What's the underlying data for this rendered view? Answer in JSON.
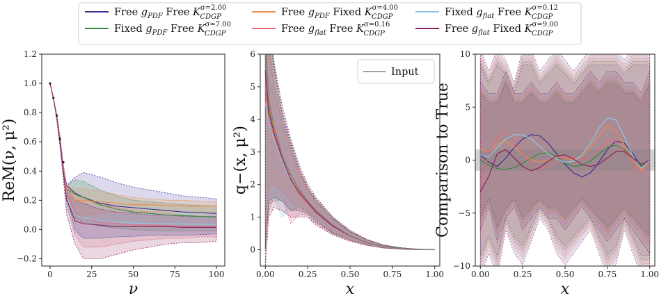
{
  "legend": [
    {
      "prefix": "Free ",
      "gsub": "PDF",
      "mid": " Free ",
      "sup": "σ=2.00",
      "color": "#3a2f8f"
    },
    {
      "prefix": "Fixed ",
      "gsub": "PDF",
      "mid": " Free ",
      "sup": "σ=7.00",
      "color": "#2e8b3a"
    },
    {
      "prefix": "Free ",
      "gsub": "PDF",
      "mid": " Fixed ",
      "sup": "σ=4.00",
      "color": "#f08a4b"
    },
    {
      "prefix": "Free ",
      "gsub": "flat",
      "mid": " Free ",
      "sup": "σ=0.16",
      "color": "#e36b7a"
    },
    {
      "prefix": "Fixed ",
      "gsub": "flat",
      "mid": " Free ",
      "sup": "σ=0.12",
      "color": "#8cc8e6"
    },
    {
      "prefix": "Free ",
      "gsub": "flat",
      "mid": " Fixed ",
      "sup": "σ=9.00",
      "color": "#8b1f5e"
    }
  ],
  "legend_k_sub": "CDGP",
  "input_legend": "Input",
  "input_color": "#808080",
  "chart_data": [
    {
      "type": "line",
      "xlabel": "ν",
      "ylabel": "ReM(ν, μ²)",
      "xlim": [
        -5,
        105
      ],
      "ylim": [
        -0.25,
        1.2
      ],
      "xticks": [
        0,
        25,
        50,
        75,
        100
      ],
      "yticks": [
        -0.2,
        0.0,
        0.2,
        0.4,
        0.6,
        0.8,
        1.0,
        1.2
      ],
      "yticklabels": [
        "−0.2",
        "0.0",
        "0.2",
        "0.4",
        "0.6",
        "0.8",
        "1.0",
        "1.2"
      ],
      "xticklabels": [
        "0",
        "25",
        "50",
        "75",
        "100"
      ],
      "x": [
        0,
        2,
        4,
        6,
        8,
        10,
        15,
        20,
        30,
        40,
        50,
        60,
        70,
        80,
        90,
        100
      ],
      "input_points": {
        "x": [
          0,
          2,
          4,
          6,
          8
        ],
        "y": [
          1.0,
          0.9,
          0.78,
          0.62,
          0.46
        ]
      },
      "series": [
        {
          "mean": [
            1.0,
            0.9,
            0.77,
            0.6,
            0.42,
            0.3,
            0.25,
            0.22,
            0.18,
            0.16,
            0.15,
            0.14,
            0.13,
            0.12,
            0.115,
            0.11
          ],
          "lo": [
            1.0,
            0.9,
            0.76,
            0.58,
            0.38,
            0.22,
            0.0,
            -0.06,
            -0.06,
            -0.05,
            -0.045,
            -0.04,
            -0.04,
            -0.04,
            -0.035,
            -0.03
          ],
          "hi": [
            1.0,
            0.9,
            0.78,
            0.62,
            0.44,
            0.3,
            0.36,
            0.39,
            0.36,
            0.32,
            0.29,
            0.27,
            0.25,
            0.23,
            0.22,
            0.21
          ]
        },
        {
          "mean": [
            1.0,
            0.9,
            0.77,
            0.6,
            0.42,
            0.28,
            0.24,
            0.22,
            0.17,
            0.14,
            0.12,
            0.11,
            0.1,
            0.095,
            0.09,
            0.085
          ],
          "lo": [
            1.0,
            0.9,
            0.76,
            0.58,
            0.38,
            0.2,
            0.08,
            0.05,
            0.02,
            0.01,
            0.0,
            -0.005,
            -0.01,
            -0.01,
            -0.01,
            -0.01
          ],
          "hi": [
            1.0,
            0.9,
            0.78,
            0.62,
            0.44,
            0.3,
            0.34,
            0.33,
            0.27,
            0.23,
            0.2,
            0.19,
            0.18,
            0.17,
            0.165,
            0.16
          ]
        },
        {
          "mean": [
            1.0,
            0.9,
            0.77,
            0.6,
            0.42,
            0.28,
            0.2,
            0.2,
            0.19,
            0.18,
            0.17,
            0.17,
            0.165,
            0.16,
            0.16,
            0.16
          ],
          "lo": [
            1.0,
            0.9,
            0.76,
            0.58,
            0.38,
            0.22,
            0.1,
            0.1,
            0.11,
            0.12,
            0.12,
            0.12,
            0.12,
            0.12,
            0.12,
            0.12
          ],
          "hi": [
            1.0,
            0.9,
            0.78,
            0.62,
            0.44,
            0.3,
            0.28,
            0.28,
            0.26,
            0.24,
            0.22,
            0.21,
            0.2,
            0.2,
            0.195,
            0.19
          ]
        },
        {
          "mean": [
            1.0,
            0.9,
            0.77,
            0.6,
            0.42,
            0.25,
            0.12,
            0.08,
            0.05,
            0.04,
            0.03,
            0.03,
            0.025,
            0.02,
            0.02,
            0.02
          ],
          "lo": [
            1.0,
            0.9,
            0.76,
            0.58,
            0.36,
            0.18,
            -0.04,
            -0.12,
            -0.12,
            -0.1,
            -0.08,
            -0.07,
            -0.06,
            -0.06,
            -0.05,
            -0.05
          ],
          "hi": [
            1.0,
            0.9,
            0.78,
            0.62,
            0.44,
            0.3,
            0.25,
            0.22,
            0.18,
            0.15,
            0.13,
            0.12,
            0.11,
            0.1,
            0.1,
            0.1
          ]
        },
        {
          "mean": [
            1.0,
            0.9,
            0.77,
            0.6,
            0.42,
            0.22,
            0.1,
            0.08,
            0.06,
            0.05,
            0.045,
            0.04,
            0.04,
            0.04,
            0.035,
            0.035
          ],
          "lo": [
            1.0,
            0.9,
            0.76,
            0.58,
            0.38,
            0.15,
            -0.02,
            -0.06,
            -0.06,
            -0.05,
            -0.05,
            -0.04,
            -0.04,
            -0.04,
            -0.03,
            -0.03
          ],
          "hi": [
            1.0,
            0.9,
            0.78,
            0.62,
            0.44,
            0.28,
            0.2,
            0.18,
            0.15,
            0.13,
            0.12,
            0.11,
            0.1,
            0.1,
            0.09,
            0.09
          ]
        },
        {
          "mean": [
            1.0,
            0.9,
            0.77,
            0.6,
            0.4,
            0.2,
            0.06,
            0.04,
            0.03,
            0.02,
            0.02,
            0.02,
            0.02,
            0.015,
            0.015,
            0.015
          ],
          "lo": [
            1.0,
            0.9,
            0.75,
            0.56,
            0.34,
            0.1,
            -0.1,
            -0.2,
            -0.2,
            -0.17,
            -0.14,
            -0.12,
            -0.1,
            -0.09,
            -0.09,
            -0.08
          ],
          "hi": [
            1.0,
            0.9,
            0.79,
            0.64,
            0.44,
            0.28,
            0.2,
            0.18,
            0.14,
            0.12,
            0.11,
            0.1,
            0.1,
            0.09,
            0.09,
            0.09
          ]
        }
      ]
    },
    {
      "type": "line",
      "xlabel": "x",
      "ylabel": "q−(x, μ²)",
      "xlim": [
        -0.03,
        1.03
      ],
      "ylim": [
        -0.5,
        6.0
      ],
      "xticks": [
        0.0,
        0.25,
        0.5,
        0.75,
        1.0
      ],
      "xticklabels": [
        "0.00",
        "0.25",
        "0.50",
        "0.75",
        "1.00"
      ],
      "yticks": [
        0,
        1,
        2,
        3,
        4,
        5,
        6
      ],
      "yticklabels": [
        "0",
        "1",
        "2",
        "3",
        "4",
        "5",
        "6"
      ],
      "x": [
        0.0,
        0.02,
        0.05,
        0.1,
        0.15,
        0.2,
        0.25,
        0.3,
        0.4,
        0.5,
        0.6,
        0.7,
        0.8,
        0.9,
        1.0
      ],
      "input": [
        6.5,
        4.6,
        3.8,
        2.9,
        2.3,
        1.85,
        1.5,
        1.2,
        0.75,
        0.43,
        0.22,
        0.1,
        0.04,
        0.01,
        0.0
      ],
      "series": [
        {
          "mean": [
            6.4,
            4.5,
            3.7,
            2.8,
            2.2,
            1.8,
            1.45,
            1.15,
            0.72,
            0.42,
            0.22,
            0.1,
            0.04,
            0.01,
            0.0
          ],
          "lo": [
            0.0,
            1.5,
            1.6,
            1.5,
            1.2,
            1.2,
            1.1,
            0.85,
            0.5,
            0.3,
            0.15,
            0.06,
            0.02,
            0.0,
            0.0
          ],
          "hi": [
            8.0,
            7.0,
            5.6,
            4.2,
            3.3,
            2.5,
            1.9,
            1.5,
            0.95,
            0.55,
            0.3,
            0.14,
            0.06,
            0.02,
            0.0
          ]
        },
        {
          "mean": [
            6.2,
            4.4,
            3.6,
            2.8,
            2.2,
            1.8,
            1.5,
            1.2,
            0.74,
            0.43,
            0.22,
            0.1,
            0.04,
            0.01,
            0.0
          ],
          "lo": [
            0.0,
            1.4,
            1.5,
            1.5,
            1.2,
            1.3,
            1.2,
            0.9,
            0.52,
            0.3,
            0.15,
            0.06,
            0.02,
            0.0,
            0.0
          ],
          "hi": [
            8.0,
            7.0,
            5.7,
            4.1,
            3.2,
            2.4,
            1.9,
            1.55,
            0.98,
            0.58,
            0.3,
            0.14,
            0.06,
            0.02,
            0.0
          ]
        },
        {
          "mean": [
            6.3,
            4.5,
            3.7,
            2.8,
            2.2,
            1.8,
            1.45,
            1.15,
            0.73,
            0.42,
            0.22,
            0.1,
            0.04,
            0.01,
            0.0
          ],
          "lo": [
            0.5,
            2.0,
            2.0,
            1.8,
            1.5,
            1.3,
            1.15,
            0.9,
            0.55,
            0.32,
            0.16,
            0.07,
            0.02,
            0.0,
            0.0
          ],
          "hi": [
            7.5,
            6.5,
            5.2,
            3.9,
            3.0,
            2.3,
            1.8,
            1.45,
            0.92,
            0.53,
            0.28,
            0.13,
            0.05,
            0.01,
            0.0
          ]
        },
        {
          "mean": [
            5.0,
            4.0,
            3.5,
            2.7,
            2.1,
            1.7,
            1.4,
            1.12,
            0.7,
            0.41,
            0.21,
            0.1,
            0.04,
            0.01,
            0.0
          ],
          "lo": [
            0.2,
            1.2,
            1.6,
            1.6,
            0.8,
            1.1,
            1.05,
            0.8,
            0.48,
            0.28,
            0.14,
            0.06,
            0.02,
            0.0,
            0.0
          ],
          "hi": [
            8.0,
            6.2,
            5.0,
            3.9,
            3.1,
            2.4,
            1.85,
            1.45,
            0.92,
            0.55,
            0.3,
            0.14,
            0.06,
            0.02,
            0.0
          ]
        },
        {
          "mean": [
            4.5,
            3.9,
            3.4,
            2.7,
            2.1,
            1.75,
            1.45,
            1.15,
            0.72,
            0.42,
            0.22,
            0.1,
            0.04,
            0.01,
            0.0
          ],
          "lo": [
            0.8,
            1.8,
            1.6,
            1.0,
            1.4,
            1.3,
            1.15,
            0.9,
            0.55,
            0.32,
            0.16,
            0.07,
            0.02,
            0.0,
            0.0
          ],
          "hi": [
            7.0,
            5.8,
            5.0,
            3.8,
            2.9,
            2.2,
            1.75,
            1.4,
            0.9,
            0.52,
            0.28,
            0.13,
            0.05,
            0.01,
            0.0
          ]
        },
        {
          "mean": [
            5.5,
            4.2,
            3.6,
            2.8,
            2.15,
            1.75,
            1.45,
            1.15,
            0.72,
            0.42,
            0.22,
            0.1,
            0.04,
            0.01,
            0.0
          ],
          "lo": [
            -0.5,
            1.0,
            1.3,
            1.2,
            1.0,
            1.0,
            1.0,
            0.75,
            0.45,
            0.26,
            0.13,
            0.05,
            0.015,
            0.0,
            0.0
          ],
          "hi": [
            8.0,
            7.2,
            5.8,
            4.4,
            3.4,
            2.6,
            2.0,
            1.6,
            1.0,
            0.6,
            0.32,
            0.15,
            0.06,
            0.02,
            0.0
          ]
        }
      ]
    },
    {
      "type": "line",
      "xlabel": "x",
      "ylabel": "Comparison to True",
      "xlim": [
        -0.03,
        1.03
      ],
      "ylim": [
        -10,
        10
      ],
      "xticks": [
        0.0,
        0.25,
        0.5,
        0.75,
        1.0
      ],
      "xticklabels": [
        "0.00",
        "0.25",
        "0.50",
        "0.75",
        "1.00"
      ],
      "yticks": [
        -10,
        -5,
        0,
        5,
        10
      ],
      "yticklabels": [
        "−10",
        "−5",
        "0",
        "5",
        "10"
      ],
      "band": [
        -1,
        1
      ],
      "x": [
        0.0,
        0.05,
        0.1,
        0.15,
        0.2,
        0.25,
        0.3,
        0.35,
        0.4,
        0.45,
        0.5,
        0.55,
        0.6,
        0.65,
        0.7,
        0.75,
        0.8,
        0.85,
        0.9,
        0.95,
        1.0
      ],
      "series": [
        {
          "mean": [
            0.5,
            -0.2,
            -0.6,
            0.2,
            1.2,
            2.0,
            2.4,
            2.3,
            1.6,
            0.6,
            -0.4,
            -1.2,
            -1.6,
            -1.2,
            -0.2,
            1.0,
            1.8,
            1.6,
            0.6,
            -0.6,
            0.0
          ]
        },
        {
          "mean": [
            0.0,
            -0.5,
            -0.8,
            -0.9,
            -0.7,
            -0.3,
            0.2,
            0.6,
            0.7,
            0.3,
            -0.3,
            -0.6,
            -0.5,
            -0.1,
            0.6,
            1.2,
            1.4,
            1.0,
            0.2,
            -0.6,
            0.0
          ]
        },
        {
          "mean": [
            1.0,
            0.8,
            1.6,
            1.8,
            1.2,
            0.5,
            0.0,
            -0.2,
            0.0,
            0.3,
            0.2,
            0.0,
            0.3,
            1.2,
            2.4,
            3.2,
            2.8,
            1.4,
            0.0,
            -1.0,
            0.0
          ]
        },
        {
          "mean": [
            -2.0,
            0.5,
            2.2,
            2.6,
            1.8,
            0.6,
            -0.4,
            -0.8,
            -0.6,
            -0.1,
            0.3,
            0.2,
            0.0,
            0.3,
            1.0,
            1.8,
            1.8,
            0.8,
            -0.4,
            -1.2,
            0.0
          ]
        },
        {
          "mean": [
            0.5,
            0.3,
            1.2,
            2.0,
            2.4,
            2.4,
            2.0,
            1.3,
            0.6,
            0.1,
            -0.2,
            -0.1,
            0.5,
            1.6,
            3.0,
            4.0,
            3.8,
            2.2,
            0.4,
            -0.8,
            0.0
          ]
        },
        {
          "mean": [
            -3.0,
            -1.5,
            0.6,
            1.0,
            0.2,
            -0.6,
            -1.0,
            -0.7,
            -0.1,
            0.4,
            0.5,
            0.1,
            -0.4,
            -0.6,
            -0.4,
            0.2,
            0.8,
            0.8,
            0.2,
            -0.4,
            0.0
          ]
        }
      ],
      "envelopes": [
        {
          "lo": [
            -10,
            -8,
            -10,
            -6,
            -8,
            -9,
            -7,
            -5,
            -6,
            -8,
            -9,
            -8,
            -7,
            -6,
            -8,
            -10,
            -9,
            -6,
            -8,
            -10,
            -10
          ],
          "hi": [
            10,
            8,
            10,
            9,
            7,
            10,
            10,
            8,
            9,
            10,
            9,
            8,
            9,
            10,
            10,
            10,
            10,
            9,
            10,
            10,
            10
          ]
        },
        {
          "lo": [
            -6,
            -4,
            -7,
            -5,
            -4,
            -6,
            -5,
            -4,
            -5,
            -5,
            -6,
            -5,
            -4,
            -5,
            -6,
            -7,
            -6,
            -5,
            -6,
            -7,
            -8
          ],
          "hi": [
            7,
            6,
            6,
            8,
            6,
            6,
            7,
            6,
            6,
            7,
            6,
            6,
            7,
            8,
            7,
            8,
            8,
            7,
            7,
            6,
            8
          ]
        }
      ]
    }
  ]
}
